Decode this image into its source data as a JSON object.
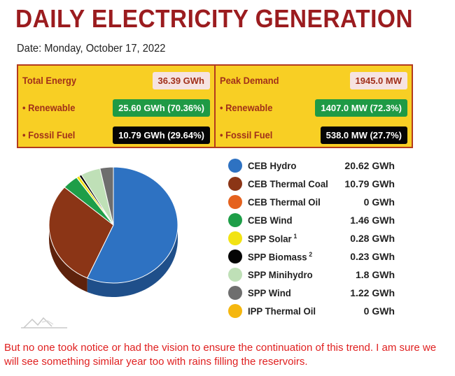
{
  "header": {
    "title": "DAILY ELECTRICITY GENERATION",
    "date": "Date: Monday, October 17, 2022"
  },
  "energy": {
    "total_label": "Total Energy",
    "total_value": "36.39 GWh",
    "renewable_label": "• Renewable",
    "renewable_value": "25.60 GWh (70.36%)",
    "fossil_label": "• Fossil Fuel",
    "fossil_value": "10.79 GWh (29.64%)"
  },
  "demand": {
    "peak_label": "Peak Demand",
    "peak_value": "1945.0 MW",
    "renewable_label": "• Renewable",
    "renewable_value": "1407.0 MW (72.3%)",
    "fossil_label": "• Fossil Fuel",
    "fossil_value": "538.0 MW (27.7%)"
  },
  "chart_data": {
    "type": "pie",
    "unit": "GWh",
    "slices": [
      {
        "name": "CEB Hydro",
        "label": "CEB Hydro",
        "value_text": "20.62 GWh",
        "value": 20.62,
        "color": "#2e72c2",
        "dark": "#1f4f8a"
      },
      {
        "name": "CEB Thermal Coal",
        "label": "CEB Thermal Coal",
        "value_text": "10.79 GWh",
        "value": 10.79,
        "color": "#8b3516",
        "dark": "#5e220c"
      },
      {
        "name": "CEB Thermal Oil",
        "label": "CEB Thermal Oil",
        "value_text": "0 GWh",
        "value": 0,
        "color": "#e5621e",
        "dark": "#a0420f"
      },
      {
        "name": "CEB Wind",
        "label": "CEB Wind",
        "value_text": "1.46 GWh",
        "value": 1.46,
        "color": "#1e9e48",
        "dark": "#136c30"
      },
      {
        "name": "SPP Solar",
        "label": "SPP Solar",
        "sup": "1",
        "value_text": "0.28 GWh",
        "value": 0.28,
        "color": "#f2e313",
        "dark": "#b0a30b"
      },
      {
        "name": "SPP Biomass",
        "label": "SPP Biomass",
        "sup": "2",
        "value_text": "0.23 GWh",
        "value": 0.23,
        "color": "#050505",
        "dark": "#000000"
      },
      {
        "name": "SPP Minihydro",
        "label": "SPP Minihydro",
        "value_text": "1.8 GWh",
        "value": 1.8,
        "color": "#bfe0b7",
        "dark": "#8fae88"
      },
      {
        "name": "SPP Wind",
        "label": "SPP Wind",
        "value_text": "1.22 GWh",
        "value": 1.22,
        "color": "#6e6e6e",
        "dark": "#474747"
      },
      {
        "name": "IPP Thermal Oil",
        "label": "IPP Thermal Oil",
        "value_text": "0 GWh",
        "value": 0,
        "color": "#f5b70f",
        "dark": "#b1830a"
      }
    ]
  },
  "logo_icon": "mountain-outline-icon",
  "caption": "But no one took notice or had the vision to ensure the continuation of this trend. I am sure we will see something similar year too with rains filling the reservoirs."
}
